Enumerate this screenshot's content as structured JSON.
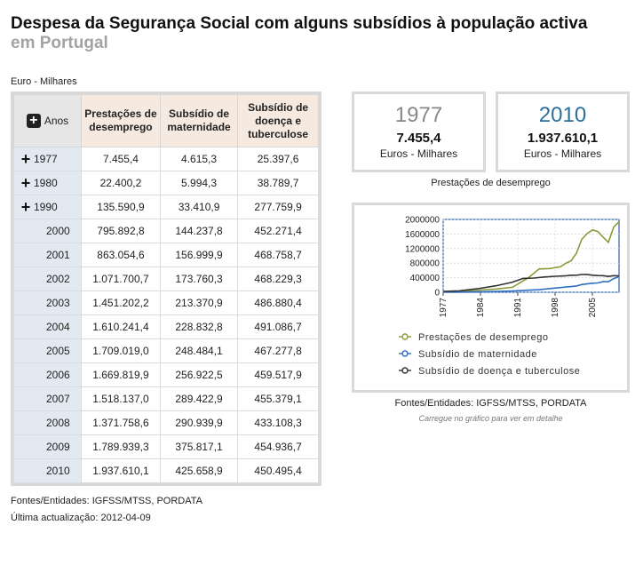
{
  "page": {
    "title": "Despesa da Segurança Social com alguns subsídios à população activa",
    "subtitle": "em Portugal",
    "unit_label": "Euro - Milhares"
  },
  "table": {
    "year_header": "Anos",
    "headers": [
      "Prestações de desemprego",
      "Subsídio de maternidade",
      "Subsídio de doença e tuberculose"
    ],
    "rows": [
      {
        "year": "1977",
        "expandable": true,
        "values": [
          "7.455,4",
          "4.615,3",
          "25.397,6"
        ]
      },
      {
        "year": "1980",
        "expandable": true,
        "values": [
          "22.400,2",
          "5.994,3",
          "38.789,7"
        ]
      },
      {
        "year": "1990",
        "expandable": true,
        "values": [
          "135.590,9",
          "33.410,9",
          "277.759,9"
        ]
      },
      {
        "year": "2000",
        "expandable": false,
        "values": [
          "795.892,8",
          "144.237,8",
          "452.271,4"
        ]
      },
      {
        "year": "2001",
        "expandable": false,
        "values": [
          "863.054,6",
          "156.999,9",
          "468.758,7"
        ]
      },
      {
        "year": "2002",
        "expandable": false,
        "values": [
          "1.071.700,7",
          "173.760,3",
          "468.229,3"
        ]
      },
      {
        "year": "2003",
        "expandable": false,
        "values": [
          "1.451.202,2",
          "213.370,9",
          "486.880,4"
        ]
      },
      {
        "year": "2004",
        "expandable": false,
        "values": [
          "1.610.241,4",
          "228.832,8",
          "491.086,7"
        ]
      },
      {
        "year": "2005",
        "expandable": false,
        "values": [
          "1.709.019,0",
          "248.484,1",
          "467.277,8"
        ]
      },
      {
        "year": "2006",
        "expandable": false,
        "values": [
          "1.669.819,9",
          "256.922,5",
          "459.517,9"
        ]
      },
      {
        "year": "2007",
        "expandable": false,
        "values": [
          "1.518.137,0",
          "289.422,9",
          "455.379,1"
        ]
      },
      {
        "year": "2008",
        "expandable": false,
        "values": [
          "1.371.758,6",
          "290.939,9",
          "433.108,3"
        ]
      },
      {
        "year": "2009",
        "expandable": false,
        "values": [
          "1.789.939,3",
          "375.817,1",
          "454.936,7"
        ]
      },
      {
        "year": "2010",
        "expandable": false,
        "values": [
          "1.937.610,1",
          "425.658,9",
          "450.495,4"
        ]
      }
    ]
  },
  "footer": {
    "source": "Fontes/Entidades: IGFSS/MTSS, PORDATA",
    "updated": "Última actualização: 2012-04-09"
  },
  "stats": {
    "left": {
      "year": "1977",
      "value": "7.455,4",
      "unit": "Euros - Milhares"
    },
    "right": {
      "year": "2010",
      "value": "1.937.610,1",
      "unit": "Euros - Milhares"
    },
    "caption": "Prestações de desemprego"
  },
  "chart_source": "Fontes/Entidades: IGFSS/MTSS, PORDATA",
  "chart_hint": "Carregue no gráfico para ver em detalhe",
  "chart_data": {
    "type": "line",
    "title": "",
    "xlabel": "",
    "ylabel": "",
    "x_ticks": [
      "1977",
      "1984",
      "1991",
      "1998",
      "2005"
    ],
    "y_ticks": [
      "0",
      "400000",
      "800000",
      "1200000",
      "1600000",
      "2000000"
    ],
    "ylim": [
      0,
      2000000
    ],
    "xlim": [
      1977,
      2010
    ],
    "grid": true,
    "legend_position": "bottom",
    "series": [
      {
        "name": "Prestações de desemprego",
        "color": "#8a9a3a",
        "points": [
          [
            1977,
            7455
          ],
          [
            1980,
            22400
          ],
          [
            1984,
            60000
          ],
          [
            1987,
            90000
          ],
          [
            1990,
            135591
          ],
          [
            1993,
            400000
          ],
          [
            1995,
            640000
          ],
          [
            1997,
            650000
          ],
          [
            1999,
            700000
          ],
          [
            2000,
            795893
          ],
          [
            2001,
            863055
          ],
          [
            2002,
            1071701
          ],
          [
            2003,
            1451202
          ],
          [
            2004,
            1610241
          ],
          [
            2005,
            1709019
          ],
          [
            2006,
            1669820
          ],
          [
            2007,
            1518137
          ],
          [
            2008,
            1371759
          ],
          [
            2009,
            1789939
          ],
          [
            2010,
            1937610
          ]
        ]
      },
      {
        "name": "Subsídio de maternidade",
        "color": "#2f6ec4",
        "points": [
          [
            1977,
            4615
          ],
          [
            1980,
            5994
          ],
          [
            1984,
            15000
          ],
          [
            1987,
            24000
          ],
          [
            1990,
            33411
          ],
          [
            1995,
            70000
          ],
          [
            2000,
            144238
          ],
          [
            2001,
            157000
          ],
          [
            2002,
            173760
          ],
          [
            2003,
            213371
          ],
          [
            2004,
            228833
          ],
          [
            2005,
            248484
          ],
          [
            2006,
            256923
          ],
          [
            2007,
            289423
          ],
          [
            2008,
            290940
          ],
          [
            2009,
            375817
          ],
          [
            2010,
            425659
          ]
        ]
      },
      {
        "name": "Subsídio de doença e tuberculose",
        "color": "#333333",
        "points": [
          [
            1977,
            25398
          ],
          [
            1980,
            38790
          ],
          [
            1984,
            110000
          ],
          [
            1987,
            180000
          ],
          [
            1990,
            277760
          ],
          [
            1992,
            380000
          ],
          [
            1994,
            390000
          ],
          [
            1996,
            420000
          ],
          [
            1998,
            440000
          ],
          [
            2000,
            452271
          ],
          [
            2001,
            468759
          ],
          [
            2002,
            468229
          ],
          [
            2003,
            486880
          ],
          [
            2004,
            491087
          ],
          [
            2005,
            467278
          ],
          [
            2006,
            459518
          ],
          [
            2007,
            455379
          ],
          [
            2008,
            433108
          ],
          [
            2009,
            454937
          ],
          [
            2010,
            450495
          ]
        ]
      }
    ]
  }
}
